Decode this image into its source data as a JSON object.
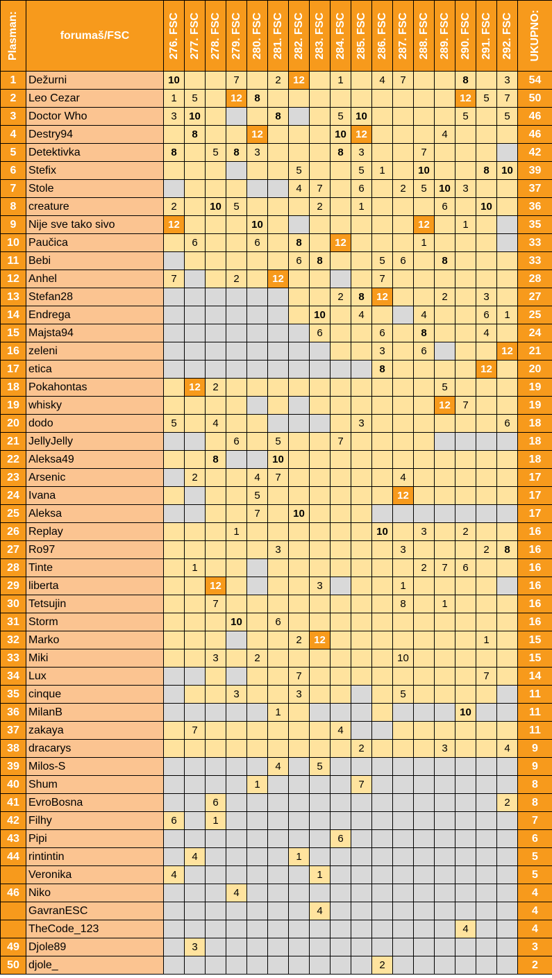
{
  "headers": {
    "rank": "Plasman:",
    "name": "forumaš/FSC",
    "total": "UKUPNO:",
    "columns": [
      "276. FSC",
      "277. FSC",
      "278. FSC",
      "279. FSC",
      "280. FSC",
      "281. FSC",
      "282. FSC",
      "283. FSC",
      "284. FSC",
      "285. FSC",
      "286. FSC",
      "287. FSC",
      "288. FSC",
      "289. FSC",
      "290. FSC",
      "291. FSC",
      "292. FSC"
    ]
  },
  "colors": {
    "orange": "#f79a1c",
    "light_orange": "#fbc491",
    "yellow": "#ffe39e",
    "gray": "#d9d9d9"
  },
  "legend_note": "cell states: y = no points, g = did not vote, h = 12 points highlight, b = bold value",
  "rows": [
    {
      "rank": "1",
      "name": "Dežurni",
      "cells": [
        "10b",
        "y",
        "y",
        "7",
        "y",
        "2",
        "12h",
        "y",
        "1",
        "y",
        "4",
        "7",
        "y",
        "y",
        "8b",
        "y",
        "3"
      ],
      "total": "54"
    },
    {
      "rank": "2",
      "name": "Leo Cezar",
      "cells": [
        "1",
        "5",
        "y",
        "12h",
        "8b",
        "y",
        "y",
        "y",
        "y",
        "y",
        "y",
        "y",
        "y",
        "y",
        "12h",
        "5",
        "7"
      ],
      "total": "50"
    },
    {
      "rank": "3",
      "name": "Doctor Who",
      "cells": [
        "3",
        "10b",
        "y",
        "g",
        "y",
        "8b",
        "g",
        "y",
        "5",
        "10b",
        "y",
        "y",
        "y",
        "y",
        "5",
        "y",
        "5"
      ],
      "total": "46"
    },
    {
      "rank": "4",
      "name": "Destry94",
      "cells": [
        "y",
        "8b",
        "y",
        "y",
        "12h",
        "y",
        "y",
        "y",
        "10b",
        "12h",
        "y",
        "y",
        "y",
        "4",
        "y",
        "y",
        "y"
      ],
      "total": "46"
    },
    {
      "rank": "5",
      "name": "Detektivka",
      "cells": [
        "8b",
        "y",
        "5",
        "8b",
        "3",
        "y",
        "y",
        "y",
        "8b",
        "3",
        "y",
        "y",
        "7",
        "y",
        "y",
        "y",
        "g"
      ],
      "total": "42"
    },
    {
      "rank": "6",
      "name": "Stefix",
      "cells": [
        "y",
        "y",
        "y",
        "g",
        "y",
        "y",
        "5",
        "y",
        "y",
        "5",
        "1",
        "y",
        "10b",
        "y",
        "y",
        "8b",
        "10b"
      ],
      "total": "39"
    },
    {
      "rank": "7",
      "name": "Stole",
      "cells": [
        "g",
        "y",
        "y",
        "y",
        "g",
        "g",
        "4",
        "7",
        "y",
        "6",
        "y",
        "2",
        "5",
        "10b",
        "3",
        "y",
        "y"
      ],
      "total": "37"
    },
    {
      "rank": "8",
      "name": "creature",
      "cells": [
        "2",
        "y",
        "10b",
        "5",
        "y",
        "y",
        "y",
        "2",
        "y",
        "1",
        "y",
        "y",
        "y",
        "6",
        "y",
        "10b",
        "y"
      ],
      "total": "36"
    },
    {
      "rank": "9",
      "name": "Nije sve tako sivo",
      "cells": [
        "12h",
        "y",
        "y",
        "y",
        "10b",
        "y",
        "g",
        "y",
        "y",
        "y",
        "y",
        "y",
        "12h",
        "y",
        "1",
        "y",
        "g"
      ],
      "total": "35"
    },
    {
      "rank": "10",
      "name": "Paučica",
      "cells": [
        "y",
        "6",
        "y",
        "y",
        "6",
        "y",
        "8b",
        "y",
        "12h",
        "y",
        "y",
        "y",
        "1",
        "y",
        "y",
        "y",
        "g"
      ],
      "total": "33"
    },
    {
      "rank": "11",
      "name": "Bebi",
      "cells": [
        "g",
        "y",
        "y",
        "y",
        "y",
        "y",
        "6",
        "8b",
        "y",
        "y",
        "5",
        "6",
        "y",
        "8b",
        "y",
        "y",
        "y"
      ],
      "total": "33"
    },
    {
      "rank": "12",
      "name": "Anhel",
      "cells": [
        "7",
        "g",
        "y",
        "2",
        "y",
        "12h",
        "y",
        "y",
        "g",
        "y",
        "7",
        "y",
        "y",
        "y",
        "y",
        "y",
        "y"
      ],
      "total": "28"
    },
    {
      "rank": "13",
      "name": "Stefan28",
      "cells": [
        "g",
        "g",
        "g",
        "g",
        "g",
        "g",
        "y",
        "y",
        "2",
        "8b",
        "12h",
        "y",
        "y",
        "2",
        "y",
        "3",
        "y"
      ],
      "total": "27"
    },
    {
      "rank": "14",
      "name": "Endrega",
      "cells": [
        "g",
        "g",
        "g",
        "g",
        "g",
        "g",
        "y",
        "10b",
        "y",
        "4",
        "y",
        "g",
        "4",
        "y",
        "y",
        "6",
        "1"
      ],
      "total": "25"
    },
    {
      "rank": "15",
      "name": "Majsta94",
      "cells": [
        "g",
        "g",
        "g",
        "g",
        "g",
        "g",
        "g",
        "6",
        "y",
        "y",
        "6",
        "y",
        "8b",
        "y",
        "y",
        "4",
        "y"
      ],
      "total": "24"
    },
    {
      "rank": "16",
      "name": "zeleni",
      "cells": [
        "g",
        "g",
        "g",
        "g",
        "g",
        "g",
        "g",
        "g",
        "y",
        "y",
        "3",
        "y",
        "6",
        "g",
        "y",
        "y",
        "12h"
      ],
      "total": "21"
    },
    {
      "rank": "17",
      "name": "etica",
      "cells": [
        "g",
        "g",
        "g",
        "g",
        "g",
        "g",
        "g",
        "g",
        "g",
        "g",
        "8b",
        "y",
        "y",
        "y",
        "y",
        "12h",
        "y"
      ],
      "total": "20"
    },
    {
      "rank": "18",
      "name": "Pokahontas",
      "cells": [
        "y",
        "12h",
        "2",
        "y",
        "y",
        "y",
        "y",
        "y",
        "y",
        "y",
        "y",
        "y",
        "y",
        "5",
        "y",
        "y",
        "y"
      ],
      "total": "19"
    },
    {
      "rank": "19",
      "name": "whisky",
      "cells": [
        "y",
        "y",
        "y",
        "y",
        "g",
        "y",
        "g",
        "y",
        "y",
        "y",
        "y",
        "y",
        "y",
        "12h",
        "7",
        "y",
        "y"
      ],
      "total": "19"
    },
    {
      "rank": "20",
      "name": "dodo",
      "cells": [
        "5",
        "y",
        "4",
        "y",
        "y",
        "g",
        "g",
        "g",
        "y",
        "3",
        "y",
        "y",
        "y",
        "y",
        "y",
        "y",
        "6"
      ],
      "total": "18"
    },
    {
      "rank": "21",
      "name": "JellyJelly",
      "cells": [
        "g",
        "g",
        "y",
        "6",
        "y",
        "5",
        "y",
        "y",
        "7",
        "y",
        "y",
        "y",
        "y",
        "g",
        "g",
        "g",
        "g"
      ],
      "total": "18"
    },
    {
      "rank": "22",
      "name": "Aleksa49",
      "cells": [
        "y",
        "y",
        "8b",
        "g",
        "g",
        "10b",
        "y",
        "y",
        "y",
        "y",
        "y",
        "y",
        "y",
        "y",
        "y",
        "y",
        "y"
      ],
      "total": "18"
    },
    {
      "rank": "23",
      "name": "Arsenic",
      "cells": [
        "g",
        "2",
        "y",
        "y",
        "4",
        "7",
        "y",
        "y",
        "y",
        "y",
        "y",
        "4",
        "y",
        "y",
        "y",
        "y",
        "y"
      ],
      "total": "17"
    },
    {
      "rank": "24",
      "name": "Ivana",
      "cells": [
        "y",
        "g",
        "y",
        "y",
        "5",
        "y",
        "y",
        "y",
        "y",
        "y",
        "y",
        "12h",
        "y",
        "y",
        "y",
        "y",
        "y"
      ],
      "total": "17"
    },
    {
      "rank": "25",
      "name": "Aleksa",
      "cells": [
        "g",
        "g",
        "y",
        "y",
        "7",
        "y",
        "10b",
        "y",
        "y",
        "y",
        "g",
        "g",
        "g",
        "g",
        "g",
        "g",
        "g"
      ],
      "total": "17"
    },
    {
      "rank": "26",
      "name": "Replay",
      "cells": [
        "y",
        "y",
        "y",
        "1",
        "y",
        "y",
        "y",
        "y",
        "y",
        "y",
        "10b",
        "y",
        "3",
        "y",
        "2",
        "y",
        "y"
      ],
      "total": "16"
    },
    {
      "rank": "27",
      "name": "Ro97",
      "cells": [
        "y",
        "y",
        "y",
        "y",
        "y",
        "3",
        "y",
        "y",
        "y",
        "y",
        "y",
        "3",
        "y",
        "y",
        "y",
        "2",
        "8b"
      ],
      "total": "16"
    },
    {
      "rank": "28",
      "name": "Tinte",
      "cells": [
        "y",
        "1",
        "y",
        "y",
        "g",
        "y",
        "y",
        "y",
        "y",
        "y",
        "y",
        "y",
        "2",
        "7",
        "6",
        "y",
        "y"
      ],
      "total": "16"
    },
    {
      "rank": "29",
      "name": "liberta",
      "cells": [
        "y",
        "y",
        "12h",
        "y",
        "g",
        "y",
        "y",
        "3",
        "g",
        "y",
        "y",
        "1",
        "y",
        "y",
        "y",
        "y",
        "g"
      ],
      "total": "16"
    },
    {
      "rank": "30",
      "name": "Tetsujin",
      "cells": [
        "y",
        "y",
        "7",
        "y",
        "y",
        "y",
        "y",
        "y",
        "y",
        "y",
        "y",
        "8",
        "y",
        "1",
        "y",
        "y",
        "y"
      ],
      "total": "16"
    },
    {
      "rank": "31",
      "name": "Storm",
      "cells": [
        "y",
        "y",
        "y",
        "10b",
        "y",
        "6",
        "y",
        "y",
        "y",
        "y",
        "y",
        "y",
        "y",
        "y",
        "y",
        "y",
        "y"
      ],
      "total": "16"
    },
    {
      "rank": "32",
      "name": "Marko",
      "cells": [
        "y",
        "y",
        "y",
        "g",
        "y",
        "y",
        "2",
        "12h",
        "y",
        "y",
        "y",
        "y",
        "y",
        "y",
        "y",
        "1",
        "y"
      ],
      "total": "15"
    },
    {
      "rank": "33",
      "name": "Miki",
      "cells": [
        "y",
        "y",
        "3",
        "y",
        "2",
        "y",
        "y",
        "y",
        "y",
        "y",
        "y",
        "10",
        "y",
        "y",
        "y",
        "y",
        "y"
      ],
      "total": "15"
    },
    {
      "rank": "34",
      "name": "Lux",
      "cells": [
        "g",
        "g",
        "y",
        "g",
        "y",
        "y",
        "7",
        "y",
        "y",
        "y",
        "y",
        "y",
        "y",
        "y",
        "y",
        "7",
        "y"
      ],
      "total": "14"
    },
    {
      "rank": "35",
      "name": "cinque",
      "cells": [
        "g",
        "y",
        "y",
        "3",
        "y",
        "y",
        "3",
        "y",
        "y",
        "g",
        "y",
        "5",
        "y",
        "y",
        "y",
        "y",
        "g"
      ],
      "total": "11"
    },
    {
      "rank": "36",
      "name": "MilanB",
      "cells": [
        "g",
        "g",
        "g",
        "g",
        "g",
        "1",
        "y",
        "g",
        "g",
        "g",
        "y",
        "g",
        "g",
        "g",
        "10b",
        "g",
        "g"
      ],
      "total": "11"
    },
    {
      "rank": "37",
      "name": "zakaya",
      "cells": [
        "y",
        "7",
        "y",
        "y",
        "y",
        "y",
        "y",
        "y",
        "4",
        "g",
        "g",
        "y",
        "y",
        "y",
        "y",
        "y",
        "y"
      ],
      "total": "11"
    },
    {
      "rank": "38",
      "name": "dracarys",
      "cells": [
        "y",
        "y",
        "y",
        "y",
        "y",
        "y",
        "y",
        "y",
        "y",
        "2",
        "y",
        "y",
        "y",
        "3",
        "y",
        "y",
        "4"
      ],
      "total": "9"
    },
    {
      "rank": "39",
      "name": "Milos-S",
      "cells": [
        "g",
        "g",
        "g",
        "g",
        "g",
        "4",
        "g",
        "5",
        "g",
        "g",
        "g",
        "g",
        "g",
        "g",
        "g",
        "g",
        "g"
      ],
      "total": "9"
    },
    {
      "rank": "40",
      "name": "Shum",
      "cells": [
        "g",
        "g",
        "g",
        "g",
        "1",
        "g",
        "g",
        "g",
        "g",
        "7",
        "g",
        "g",
        "g",
        "g",
        "g",
        "g",
        "g"
      ],
      "total": "8"
    },
    {
      "rank": "41",
      "name": "EvroBosna",
      "cells": [
        "g",
        "g",
        "6",
        "g",
        "g",
        "g",
        "g",
        "g",
        "g",
        "g",
        "g",
        "g",
        "g",
        "g",
        "g",
        "g",
        "2"
      ],
      "total": "8"
    },
    {
      "rank": "42",
      "name": "Filhy",
      "cells": [
        "6",
        "g",
        "1",
        "g",
        "g",
        "g",
        "g",
        "g",
        "g",
        "g",
        "g",
        "g",
        "g",
        "g",
        "g",
        "g",
        "g"
      ],
      "total": "7"
    },
    {
      "rank": "43",
      "name": "Pipi",
      "cells": [
        "g",
        "g",
        "g",
        "g",
        "g",
        "g",
        "g",
        "g",
        "6",
        "g",
        "g",
        "g",
        "g",
        "g",
        "g",
        "g",
        "g"
      ],
      "total": "6"
    },
    {
      "rank": "44",
      "name": "rintintin",
      "cells": [
        "g",
        "4",
        "g",
        "g",
        "g",
        "g",
        "1",
        "g",
        "g",
        "g",
        "g",
        "g",
        "g",
        "g",
        "g",
        "g",
        "g"
      ],
      "total": "5"
    },
    {
      "rank": "",
      "name": "Veronika",
      "cells": [
        "4",
        "g",
        "g",
        "g",
        "g",
        "g",
        "g",
        "1",
        "g",
        "g",
        "g",
        "g",
        "g",
        "g",
        "g",
        "g",
        "g"
      ],
      "total": "5"
    },
    {
      "rank": "46",
      "name": "Niko",
      "cells": [
        "g",
        "g",
        "g",
        "4",
        "g",
        "g",
        "g",
        "g",
        "g",
        "g",
        "g",
        "g",
        "g",
        "g",
        "g",
        "g",
        "g"
      ],
      "total": "4"
    },
    {
      "rank": "",
      "name": "GavranESC",
      "cells": [
        "g",
        "g",
        "g",
        "g",
        "g",
        "g",
        "g",
        "4",
        "g",
        "g",
        "g",
        "g",
        "g",
        "g",
        "g",
        "g",
        "g"
      ],
      "total": "4"
    },
    {
      "rank": "",
      "name": "TheCode_123",
      "cells": [
        "g",
        "g",
        "g",
        "g",
        "g",
        "g",
        "g",
        "g",
        "g",
        "g",
        "g",
        "g",
        "g",
        "g",
        "4",
        "g",
        "g"
      ],
      "total": "4"
    },
    {
      "rank": "49",
      "name": "Djole89",
      "cells": [
        "g",
        "3",
        "g",
        "g",
        "g",
        "g",
        "g",
        "g",
        "g",
        "g",
        "g",
        "g",
        "g",
        "g",
        "g",
        "g",
        "g"
      ],
      "total": "3"
    },
    {
      "rank": "50",
      "name": "djole_",
      "cells": [
        "g",
        "g",
        "g",
        "g",
        "g",
        "g",
        "g",
        "g",
        "g",
        "g",
        "2",
        "g",
        "g",
        "g",
        "g",
        "g",
        "g"
      ],
      "total": "2"
    }
  ]
}
